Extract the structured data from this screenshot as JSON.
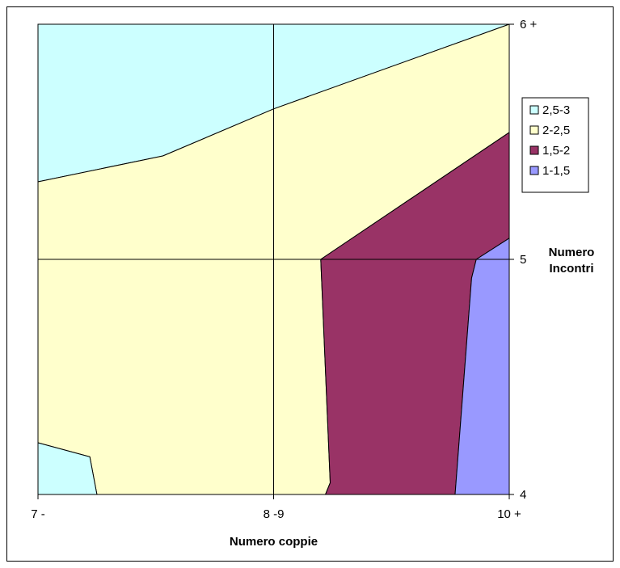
{
  "chart_data": {
    "type": "area",
    "subtype": "contour",
    "x_categories": [
      "7 -",
      "8 -9",
      "10 +"
    ],
    "y_categories": [
      "4",
      "5",
      "6 +"
    ],
    "x_axis_title": "Numero coppie",
    "y_axis_title": [
      "Numero",
      "Incontri"
    ],
    "grid": true,
    "legend_position": "right",
    "bands": [
      {
        "name": "2,5-3",
        "range": [
          2.5,
          3
        ],
        "color": "#ccffff"
      },
      {
        "name": "2-2,5",
        "range": [
          2,
          2.5
        ],
        "color": "#ffffcc"
      },
      {
        "name": "1,5-2",
        "range": [
          1.5,
          2
        ],
        "color": "#993366"
      },
      {
        "name": "1-1,5",
        "range": [
          1,
          1.5
        ],
        "color": "#9999ff"
      }
    ],
    "regions": [
      {
        "band": "2,5-3",
        "polygon": [
          [
            0,
            2
          ],
          [
            2,
            2
          ],
          [
            1,
            1.64
          ],
          [
            0.53,
            1.44
          ],
          [
            0,
            1.33
          ]
        ]
      },
      {
        "band": "2-2,5",
        "polygon": [
          [
            0,
            1.33
          ],
          [
            0.53,
            1.44
          ],
          [
            1,
            1.64
          ],
          [
            2,
            2
          ],
          [
            2,
            1.54
          ],
          [
            1.2,
            1
          ],
          [
            1.24,
            0.05
          ],
          [
            1.22,
            0
          ],
          [
            0.25,
            0
          ],
          [
            0.22,
            0.16
          ],
          [
            0,
            0.22
          ]
        ]
      },
      {
        "band": "2,5-3",
        "polygon": [
          [
            0,
            0.22
          ],
          [
            0.22,
            0.16
          ],
          [
            0.25,
            0
          ],
          [
            0,
            0
          ]
        ]
      },
      {
        "band": "1,5-2",
        "polygon": [
          [
            2,
            1.54
          ],
          [
            2,
            1.09
          ],
          [
            1.86,
            1
          ],
          [
            1.84,
            0.92
          ],
          [
            1.77,
            0
          ],
          [
            1.22,
            0
          ],
          [
            1.24,
            0.05
          ],
          [
            1.2,
            1
          ]
        ]
      },
      {
        "band": "1-1,5",
        "polygon": [
          [
            2,
            1.09
          ],
          [
            1.86,
            1
          ],
          [
            1.84,
            0.92
          ],
          [
            1.77,
            0
          ],
          [
            2,
            0
          ]
        ]
      }
    ]
  }
}
